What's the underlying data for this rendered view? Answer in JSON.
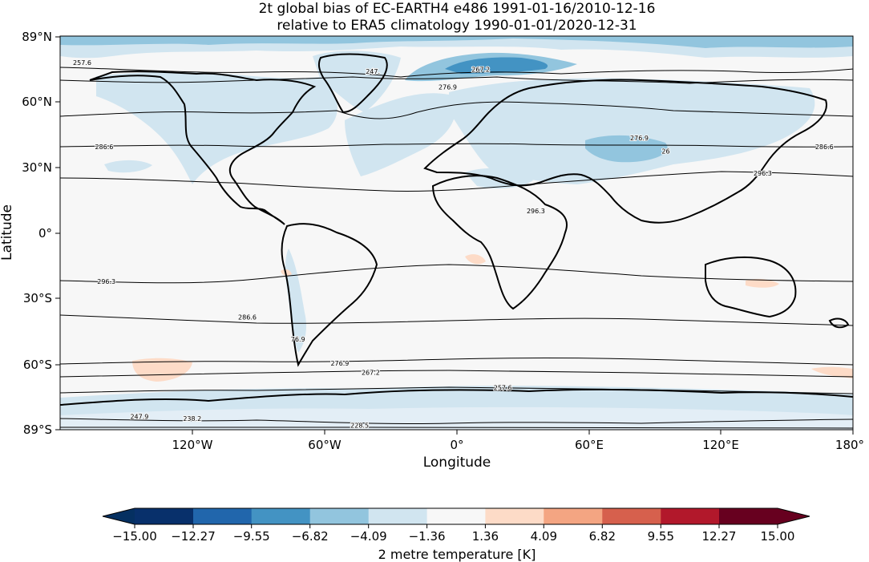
{
  "figure": {
    "title_line1": "2t global bias of EC-EARTH4 e486 1991-01-16/2010-12-16",
    "title_line2": "relative to ERA5 climatology 1990-01-01/2020-12-31",
    "xlabel": "Longitude",
    "ylabel": "Latitude",
    "x_ticks": [
      "120°W",
      "60°W",
      "0°",
      "60°E",
      "120°E",
      "180°"
    ],
    "y_ticks": [
      "89°N",
      "60°N",
      "30°N",
      "0°",
      "30°S",
      "60°S",
      "89°S"
    ]
  },
  "chart_data": {
    "type": "heatmap",
    "projection": "PlateCarree",
    "lon_range": [
      -180,
      180
    ],
    "lat_range": [
      -89,
      89
    ],
    "contour_labels": [
      {
        "text": "257.6",
        "lon": -170,
        "lat": 77
      },
      {
        "text": "247.",
        "lon": -38,
        "lat": 73
      },
      {
        "text": "267.2",
        "lon": 11,
        "lat": 74
      },
      {
        "text": "276.9",
        "lon": -4,
        "lat": 66
      },
      {
        "text": "286.6",
        "lon": -160,
        "lat": 39
      },
      {
        "text": "286.6",
        "lon": 167,
        "lat": 39
      },
      {
        "text": "276.9",
        "lon": 83,
        "lat": 43
      },
      {
        "text": "26",
        "lon": 95,
        "lat": 37
      },
      {
        "text": "296.3",
        "lon": 139,
        "lat": 27
      },
      {
        "text": "296.3",
        "lon": 36,
        "lat": 10
      },
      {
        "text": "296.3",
        "lon": -159,
        "lat": -22
      },
      {
        "text": "286.6",
        "lon": -95,
        "lat": -38
      },
      {
        "text": "76.9",
        "lon": -72,
        "lat": -48
      },
      {
        "text": "276.9",
        "lon": -53,
        "lat": -59
      },
      {
        "text": "267.2",
        "lon": -39,
        "lat": -63
      },
      {
        "text": "257.6",
        "lon": 21,
        "lat": -70
      },
      {
        "text": "247.9",
        "lon": -144,
        "lat": -83
      },
      {
        "text": "238.2",
        "lon": -120,
        "lat": -84
      },
      {
        "text": "228.5",
        "lon": -44,
        "lat": -87
      }
    ],
    "colorbar": {
      "label": "2 metre temperature [K]",
      "ticks": [
        "−15.00",
        "−12.27",
        "−9.55",
        "−6.82",
        "−4.09",
        "−1.36",
        "1.36",
        "4.09",
        "6.82",
        "9.55",
        "12.27",
        "15.00"
      ],
      "tick_values": [
        -15.0,
        -12.27,
        -9.55,
        -6.82,
        -4.09,
        -1.36,
        1.36,
        4.09,
        6.82,
        9.55,
        12.27,
        15.0
      ],
      "colors": [
        "#053061",
        "#08306b",
        "#2166ac",
        "#4393c3",
        "#92c5de",
        "#d1e5f0",
        "#f7f7f7",
        "#fddbc7",
        "#f4a582",
        "#d6604d",
        "#b2182b",
        "#67001f"
      ],
      "extend": "both"
    }
  }
}
